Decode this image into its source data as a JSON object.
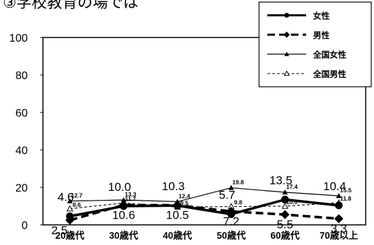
{
  "title": "③学校教育の場では",
  "chart_data": {
    "type": "line",
    "title": "③学校教育の場では",
    "xlabel": "",
    "ylabel": "",
    "ylim": [
      0,
      100
    ],
    "yticks": [
      0,
      20,
      40,
      60,
      80,
      100
    ],
    "categories": [
      "20歳代",
      "30歳代",
      "40歳代",
      "50歳代",
      "60歳代",
      "70歳以上"
    ],
    "grid": false,
    "legend_position": "top-right",
    "series": [
      {
        "name": "女性",
        "values": [
          4.6,
          10.0,
          10.3,
          5.7,
          13.5,
          10.4
        ],
        "color": "#000000",
        "style": "thick-solid",
        "marker": "circle"
      },
      {
        "name": "男性",
        "values": [
          2.5,
          10.6,
          10.5,
          7.2,
          5.5,
          3.3
        ],
        "color": "#000000",
        "style": "thick-dashed",
        "marker": "diamond"
      },
      {
        "name": "全国女性",
        "values": [
          12.7,
          13.3,
          12.4,
          19.8,
          17.4,
          15.5
        ],
        "color": "#000000",
        "style": "thin-solid",
        "marker": "triangle"
      },
      {
        "name": "全国男性",
        "values": [
          8.6,
          11.7,
          9.5,
          9.8,
          10.0,
          11.8
        ],
        "color": "#000000",
        "style": "thin-dashed",
        "marker": "open-triangle"
      }
    ]
  }
}
